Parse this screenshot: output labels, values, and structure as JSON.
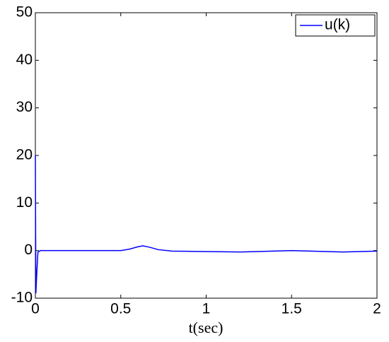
{
  "chart_data": {
    "type": "line",
    "xlabel": "t(sec)",
    "x": [
      0,
      0.003,
      0.008,
      0.015,
      0.03,
      0.5,
      0.55,
      0.6,
      0.63,
      0.67,
      0.72,
      0.8,
      1.0,
      1.2,
      1.5,
      1.8,
      2.0
    ],
    "series": [
      {
        "name": "u(k)",
        "color": "#0000ff",
        "values": [
          20,
          -9,
          -5,
          -0.3,
          0,
          0,
          0.3,
          0.8,
          1,
          0.7,
          0.2,
          -0.1,
          -0.2,
          -0.3,
          0,
          -0.3,
          -0.1
        ]
      }
    ],
    "xlim": [
      0,
      2
    ],
    "xticks": [
      0,
      0.5,
      1,
      1.5,
      2
    ],
    "ylim": [
      -10,
      50
    ],
    "yticks": [
      -10,
      0,
      10,
      20,
      30,
      40,
      50
    ],
    "grid": false,
    "legend": "top-right"
  }
}
